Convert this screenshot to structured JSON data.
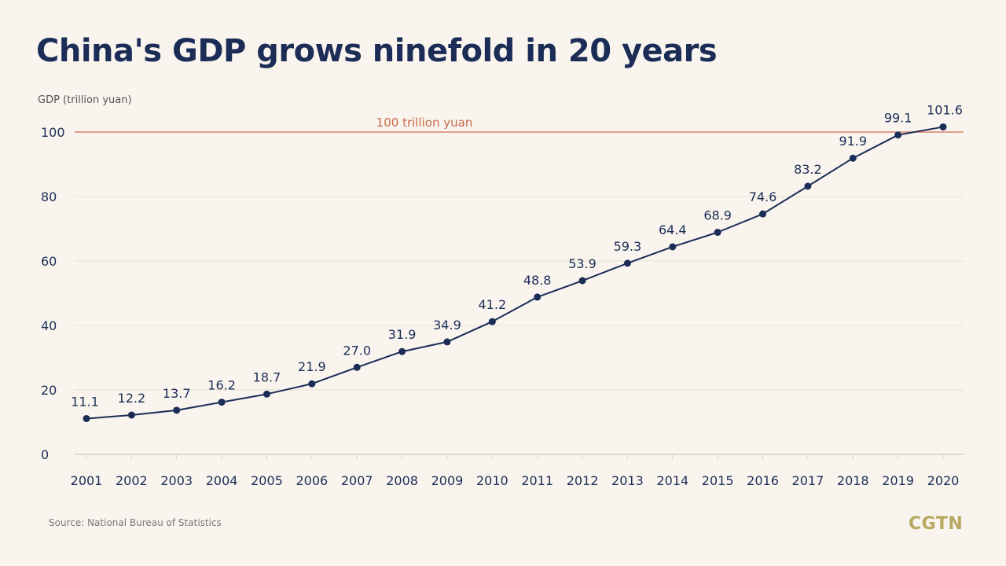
{
  "title": "China's GDP grows ninefold in 20 years",
  "source": "Source: National Bureau of Statistics",
  "logo": "CGTN",
  "colors": {
    "background": "#f9f4ed",
    "line": "#1b2d57",
    "reference_line": "#d9826b",
    "reference_text": "#c96a4a",
    "logo": "#b7a85f"
  },
  "chart_data": {
    "type": "line",
    "ylabel": "GDP (trillion yuan)",
    "xlabel": "",
    "ylim": [
      0,
      100
    ],
    "yticks": [
      0,
      20,
      40,
      60,
      80,
      100
    ],
    "grid": true,
    "categories": [
      "2001",
      "2002",
      "2003",
      "2004",
      "2005",
      "2006",
      "2007",
      "2008",
      "2009",
      "2010",
      "2011",
      "2012",
      "2013",
      "2014",
      "2015",
      "2016",
      "2017",
      "2018",
      "2019",
      "2020"
    ],
    "values": [
      11.1,
      12.2,
      13.7,
      16.2,
      18.7,
      21.9,
      27.0,
      31.9,
      34.9,
      41.2,
      48.8,
      53.9,
      59.3,
      64.4,
      68.9,
      74.6,
      83.2,
      91.9,
      99.1,
      101.6
    ],
    "value_labels": [
      "11.1",
      "12.2",
      "13.7",
      "16.2",
      "18.7",
      "21.9",
      "27.0",
      "31.9",
      "34.9",
      "41.2",
      "48.8",
      "53.9",
      "59.3",
      "64.4",
      "68.9",
      "74.6",
      "83.2",
      "91.9",
      "99.1",
      "101.6"
    ],
    "reference_line": {
      "value": 100,
      "label": "100 trillion yuan"
    }
  }
}
